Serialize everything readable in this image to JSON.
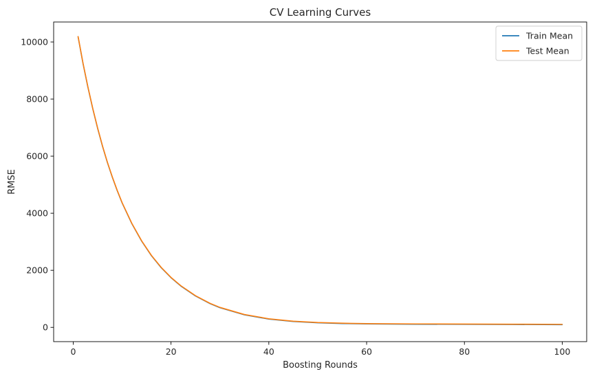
{
  "chart_data": {
    "type": "line",
    "title": "CV Learning Curves",
    "xlabel": "Boosting Rounds",
    "ylabel": "RMSE",
    "xlim": [
      -4,
      105
    ],
    "ylim": [
      -500,
      10700
    ],
    "xticks": [
      0,
      20,
      40,
      60,
      80,
      100
    ],
    "yticks": [
      0,
      2000,
      4000,
      6000,
      8000,
      10000
    ],
    "grid": false,
    "legend_position": "top-right",
    "x": [
      1,
      2,
      3,
      4,
      5,
      6,
      7,
      8,
      9,
      10,
      12,
      14,
      16,
      18,
      20,
      22,
      25,
      28,
      30,
      35,
      40,
      45,
      50,
      55,
      60,
      70,
      80,
      90,
      100
    ],
    "series": [
      {
        "name": "Train Mean",
        "color": "#1f77b4",
        "values": [
          10180,
          9250,
          8420,
          7660,
          6970,
          6340,
          5770,
          5260,
          4790,
          4360,
          3630,
          3020,
          2510,
          2090,
          1740,
          1450,
          1100,
          830,
          690,
          440,
          290,
          205,
          160,
          135,
          120,
          110,
          105,
          100,
          95
        ]
      },
      {
        "name": "Test Mean",
        "color": "#ff7f0e",
        "values": [
          10190,
          9260,
          8430,
          7670,
          6980,
          6350,
          5780,
          5270,
          4800,
          4370,
          3640,
          3030,
          2520,
          2100,
          1750,
          1460,
          1110,
          840,
          700,
          450,
          300,
          215,
          170,
          145,
          130,
          120,
          115,
          110,
          105
        ]
      }
    ]
  }
}
